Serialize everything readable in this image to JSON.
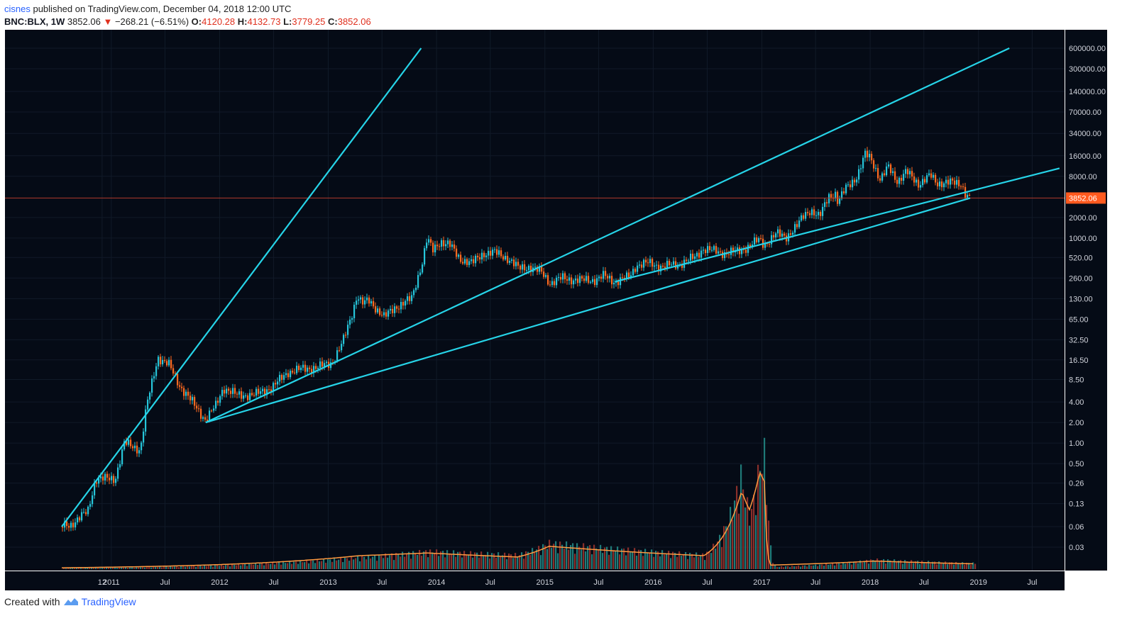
{
  "header": {
    "author": "cisnes",
    "published_text": " published on TradingView.com, December 04, 2018 12:00 UTC",
    "symbol": "BNC:BLX, 1W",
    "last": "3852.06",
    "down_arrow": "▼",
    "change": "−268.21 (−6.51%)",
    "o_label": "O:",
    "o_value": "4120.28",
    "h_label": "H:",
    "h_value": "4132.73",
    "l_label": "L:",
    "l_value": "3779.25",
    "c_label": "C:",
    "c_value": "3852.06"
  },
  "footer": {
    "created_with": "Created with",
    "brand": "TradingView",
    "logo_icon": "tradingview-logo-icon"
  },
  "colors": {
    "background": "#050b16",
    "up": "#26c6da",
    "down": "#ff6a20",
    "trendline": "#26d4e8",
    "price_line": "#b23b2e",
    "volume_ma": "#ff9a40",
    "grid": "#111a28",
    "axis_text": "#d1d4dc"
  },
  "chart_data": {
    "type": "candlestick",
    "scale": "log",
    "y_ticks": [
      "600000.00",
      "300000.00",
      "140000.00",
      "70000.00",
      "34000.00",
      "16000.00",
      "8000.00",
      "3852.06",
      "2000.00",
      "1000.00",
      "520.00",
      "260.00",
      "130.00",
      "65.00",
      "32.50",
      "16.50",
      "8.50",
      "4.00",
      "2.00",
      "1.00",
      "0.50",
      "0.26",
      "0.13",
      "0.06",
      "0.03"
    ],
    "x_ticks": [
      "12",
      "2011",
      "Jul",
      "2012",
      "Jul",
      "2013",
      "Jul",
      "2014",
      "Jul",
      "2015",
      "Jul",
      "2016",
      "Jul",
      "2017",
      "Jul",
      "2018",
      "Jul",
      "2019",
      "Jul"
    ],
    "last_price": 3852.06,
    "price_path": [
      [
        "2010-07-18",
        0.06
      ],
      [
        "2010-08-20",
        0.065
      ],
      [
        "2010-10-15",
        0.1
      ],
      [
        "2010-11-10",
        0.3
      ],
      [
        "2011-01-15",
        0.3
      ],
      [
        "2011-02-15",
        1.0
      ],
      [
        "2011-04-10",
        0.8
      ],
      [
        "2011-05-01",
        3.5
      ],
      [
        "2011-06-08",
        18
      ],
      [
        "2011-07-15",
        14
      ],
      [
        "2011-08-20",
        7
      ],
      [
        "2011-10-01",
        4
      ],
      [
        "2011-11-15",
        2.2
      ],
      [
        "2011-12-20",
        3.5
      ],
      [
        "2012-01-15",
        6.5
      ],
      [
        "2012-03-01",
        5
      ],
      [
        "2012-05-01",
        5.1
      ],
      [
        "2012-07-01",
        6.8
      ],
      [
        "2012-08-20",
        11
      ],
      [
        "2012-10-01",
        12
      ],
      [
        "2012-12-01",
        13
      ],
      [
        "2013-01-15",
        15
      ],
      [
        "2013-02-20",
        30
      ],
      [
        "2013-03-20",
        70
      ],
      [
        "2013-04-10",
        150
      ],
      [
        "2013-04-25",
        110
      ],
      [
        "2013-05-20",
        120
      ],
      [
        "2013-07-10",
        70
      ],
      [
        "2013-08-20",
        100
      ],
      [
        "2013-10-10",
        130
      ],
      [
        "2013-11-15",
        450
      ],
      [
        "2013-12-01",
        1000
      ],
      [
        "2013-12-20",
        650
      ],
      [
        "2014-01-15",
        900
      ],
      [
        "2014-02-15",
        800
      ],
      [
        "2014-03-20",
        500
      ],
      [
        "2014-05-01",
        430
      ],
      [
        "2014-06-10",
        600
      ],
      [
        "2014-07-15",
        620
      ],
      [
        "2014-09-01",
        500
      ],
      [
        "2014-10-05",
        360
      ],
      [
        "2014-11-10",
        380
      ],
      [
        "2014-12-20",
        320
      ],
      [
        "2015-01-20",
        220
      ],
      [
        "2015-03-01",
        260
      ],
      [
        "2015-05-01",
        240
      ],
      [
        "2015-06-20",
        245
      ],
      [
        "2015-07-20",
        280
      ],
      [
        "2015-08-25",
        230
      ],
      [
        "2015-10-15",
        270
      ],
      [
        "2015-11-05",
        400
      ],
      [
        "2015-12-15",
        430
      ],
      [
        "2016-02-01",
        380
      ],
      [
        "2016-04-01",
        420
      ],
      [
        "2016-05-20",
        520
      ],
      [
        "2016-06-18",
        700
      ],
      [
        "2016-07-20",
        650
      ],
      [
        "2016-09-01",
        600
      ],
      [
        "2016-10-15",
        640
      ],
      [
        "2016-11-15",
        740
      ],
      [
        "2016-12-25",
        950
      ],
      [
        "2017-01-10",
        800
      ],
      [
        "2017-02-20",
        1150
      ],
      [
        "2017-03-25",
        1050
      ],
      [
        "2017-05-01",
        1500
      ],
      [
        "2017-05-25",
        2200
      ],
      [
        "2017-06-15",
        2600
      ],
      [
        "2017-07-15",
        2000
      ],
      [
        "2017-08-15",
        4200
      ],
      [
        "2017-09-10",
        4400
      ],
      [
        "2017-09-15",
        3200
      ],
      [
        "2017-10-15",
        5700
      ],
      [
        "2017-11-20",
        8000
      ],
      [
        "2017-12-17",
        17000
      ],
      [
        "2018-01-05",
        15000
      ],
      [
        "2018-02-05",
        7000
      ],
      [
        "2018-03-05",
        11000
      ],
      [
        "2018-04-05",
        6800
      ],
      [
        "2018-05-05",
        9300
      ],
      [
        "2018-06-15",
        6200
      ],
      [
        "2018-07-25",
        8200
      ],
      [
        "2018-08-15",
        6400
      ],
      [
        "2018-09-15",
        6500
      ],
      [
        "2018-10-15",
        6400
      ],
      [
        "2018-11-05",
        6300
      ],
      [
        "2018-11-20",
        4300
      ],
      [
        "2018-12-04",
        3852.06
      ]
    ],
    "trendlines": [
      {
        "from": [
          "2010-07-18",
          0.06
        ],
        "to": [
          "2013-11-10",
          600000
        ]
      },
      {
        "from": [
          "2011-11-15",
          2.0
        ],
        "to": [
          "2018-12-04",
          3852.06
        ]
      },
      {
        "from": [
          "2011-11-15",
          2.0
        ],
        "to": [
          "2019-04-15",
          600000
        ]
      },
      {
        "from": [
          "2015-08-25",
          230
        ],
        "to": [
          "2019-10-01",
          10500
        ]
      }
    ],
    "volume_path": [
      [
        "2010-07-18",
        0.01
      ],
      [
        "2013-04-15",
        0.1
      ],
      [
        "2013-12-01",
        0.15
      ],
      [
        "2014-10-01",
        0.12
      ],
      [
        "2015-01-15",
        0.22
      ],
      [
        "2016-06-20",
        0.12
      ],
      [
        "2016-10-01",
        0.6
      ],
      [
        "2016-10-20",
        0.8
      ],
      [
        "2016-11-20",
        0.45
      ],
      [
        "2016-12-20",
        0.85
      ],
      [
        "2017-01-10",
        1.0
      ],
      [
        "2017-01-25",
        0.3
      ],
      [
        "2017-02-15",
        0.02
      ],
      [
        "2018-01-15",
        0.08
      ],
      [
        "2018-12-04",
        0.05
      ]
    ],
    "volume_ma_path": [
      [
        "2010-07-18",
        0.01
      ],
      [
        "2013-04-15",
        0.1
      ],
      [
        "2013-12-01",
        0.12
      ],
      [
        "2014-10-01",
        0.09
      ],
      [
        "2015-01-15",
        0.17
      ],
      [
        "2016-06-20",
        0.1
      ],
      [
        "2016-10-01",
        0.42
      ],
      [
        "2016-10-25",
        0.58
      ],
      [
        "2016-11-20",
        0.44
      ],
      [
        "2016-12-25",
        0.72
      ],
      [
        "2017-01-10",
        0.65
      ],
      [
        "2017-01-30",
        0.03
      ],
      [
        "2018-01-15",
        0.06
      ],
      [
        "2018-12-04",
        0.04
      ]
    ]
  }
}
